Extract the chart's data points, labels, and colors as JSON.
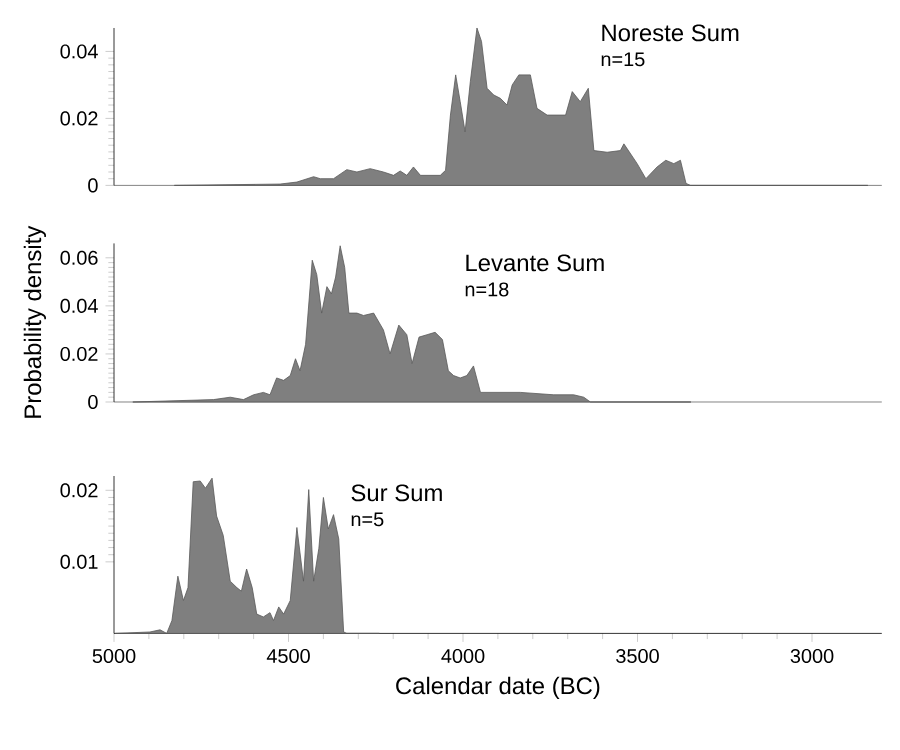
{
  "chart_data": [
    {
      "type": "area",
      "title": "Noreste Sum",
      "subtitle": "n=15",
      "color": "#7f7f7f",
      "xlim": [
        5000,
        2800
      ],
      "ylim": [
        0,
        0.047
      ],
      "yticks": [
        0,
        0.02,
        0.04
      ],
      "tick_labels": "y",
      "x": [
        4826,
        4524,
        4476,
        4428,
        4409,
        4371,
        4333,
        4304,
        4266,
        4228,
        4199,
        4180,
        4161,
        4142,
        4122,
        4065,
        4050,
        4036,
        4021,
        4008,
        3994,
        3979,
        3960,
        3947,
        3931,
        3912,
        3893,
        3874,
        3859,
        3840,
        3807,
        3788,
        3759,
        3706,
        3687,
        3664,
        3641,
        3625,
        3587,
        3549,
        3539,
        3501,
        3476,
        3444,
        3419,
        3396,
        3377,
        3361,
        3348,
        2841
      ],
      "values": [
        0,
        0.0004,
        0.001,
        0.0026,
        0.002,
        0.002,
        0.0047,
        0.004,
        0.005,
        0.004,
        0.003,
        0.0043,
        0.003,
        0.0055,
        0.003,
        0.003,
        0.0045,
        0.021,
        0.033,
        0.025,
        0.016,
        0.031,
        0.047,
        0.043,
        0.029,
        0.027,
        0.026,
        0.024,
        0.03,
        0.033,
        0.033,
        0.023,
        0.021,
        0.021,
        0.028,
        0.025,
        0.029,
        0.0104,
        0.0099,
        0.0104,
        0.0124,
        0.0065,
        0.002,
        0.0055,
        0.0075,
        0.0065,
        0.0075,
        0.0006,
        0,
        0
      ]
    },
    {
      "type": "area",
      "title": "Levante Sum",
      "subtitle": "n=18",
      "ylabel": "Probability density",
      "color": "#7f7f7f",
      "xlim": [
        5000,
        2800
      ],
      "ylim": [
        0,
        0.066
      ],
      "yticks": [
        0,
        0.02,
        0.04,
        0.06
      ],
      "tick_labels": "y",
      "x": [
        4945,
        4715,
        4667,
        4629,
        4600,
        4572,
        4553,
        4534,
        4514,
        4495,
        4480,
        4467,
        4451,
        4432,
        4419,
        4405,
        4390,
        4377,
        4365,
        4352,
        4339,
        4327,
        4304,
        4285,
        4256,
        4228,
        4209,
        4184,
        4161,
        4146,
        4126,
        4103,
        4080,
        4059,
        4042,
        4027,
        4008,
        3989,
        3970,
        3950,
        3912,
        3836,
        3740,
        3683,
        3654,
        3635,
        3348
      ],
      "values": [
        0,
        0.001,
        0.002,
        0.001,
        0.003,
        0.004,
        0.003,
        0.01,
        0.009,
        0.011,
        0.018,
        0.013,
        0.024,
        0.059,
        0.053,
        0.037,
        0.048,
        0.045,
        0.052,
        0.065,
        0.056,
        0.037,
        0.037,
        0.036,
        0.037,
        0.03,
        0.02,
        0.032,
        0.028,
        0.016,
        0.027,
        0.028,
        0.029,
        0.026,
        0.013,
        0.011,
        0.01,
        0.011,
        0.015,
        0.004,
        0.004,
        0.004,
        0.003,
        0.003,
        0.002,
        0,
        0
      ]
    },
    {
      "type": "area",
      "title": "Sur Sum",
      "subtitle": "n=5",
      "xlabel": "Calendar date (BC)",
      "color": "#7f7f7f",
      "xlim": [
        5000,
        2800
      ],
      "ylim": [
        0,
        0.022
      ],
      "xticks": [
        5000,
        4500,
        4000,
        3500,
        3000
      ],
      "yticks": [
        0.01,
        0.02
      ],
      "x": [
        4995,
        4897,
        4868,
        4849,
        4834,
        4817,
        4801,
        4788,
        4773,
        4753,
        4738,
        4719,
        4706,
        4687,
        4667,
        4648,
        4635,
        4620,
        4604,
        4591,
        4572,
        4553,
        4543,
        4528,
        4514,
        4495,
        4476,
        4457,
        4442,
        4428,
        4413,
        4400,
        4386,
        4371,
        4356,
        4342,
        4333,
        4241
      ],
      "values": [
        0,
        0.0002,
        0.0005,
        0,
        0.0018,
        0.008,
        0.0046,
        0.0064,
        0.0212,
        0.0213,
        0.0203,
        0.0217,
        0.0164,
        0.0137,
        0.0073,
        0.0064,
        0.0059,
        0.009,
        0.0064,
        0.0027,
        0.0023,
        0.0029,
        0.0018,
        0.0037,
        0.0027,
        0.0046,
        0.0148,
        0.0073,
        0.0201,
        0.0073,
        0.0119,
        0.019,
        0.0146,
        0.0166,
        0.0132,
        0.0002,
        0,
        0
      ]
    }
  ]
}
